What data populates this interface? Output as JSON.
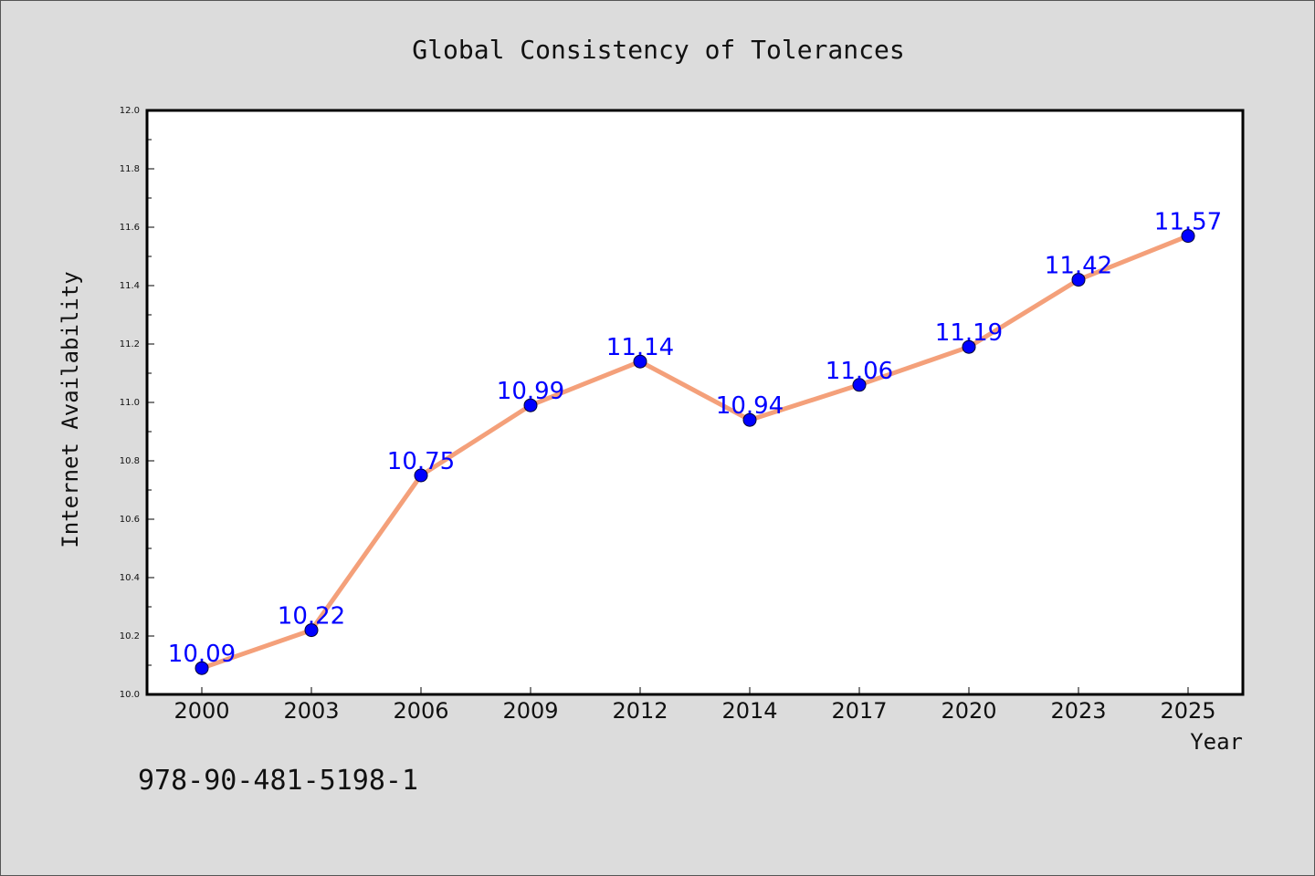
{
  "colors": {
    "background": "#dcdcdc",
    "plot_background": "#ffffff",
    "line": "#f4a07a",
    "marker": "#0000ff",
    "label_text": "#0000ff",
    "text": "#111111"
  },
  "footer_code": "978-90-481-5198-1",
  "chart_data": {
    "type": "line",
    "title": "Global Consistency of Tolerances",
    "xlabel": "Year",
    "ylabel": "Internet Availability",
    "categories": [
      "2000",
      "2003",
      "2006",
      "2009",
      "2012",
      "2014",
      "2017",
      "2020",
      "2023",
      "2025"
    ],
    "series": [
      {
        "values": [
          10.09,
          10.22,
          10.75,
          10.99,
          11.14,
          10.94,
          11.06,
          11.19,
          11.42,
          11.57
        ],
        "data_labels": [
          "10.09",
          "10.22",
          "10.75",
          "10.99",
          "11.14",
          "10.94",
          "11.06",
          "11.19",
          "11.42",
          "11.57"
        ]
      }
    ],
    "ylim": [
      10.0,
      12.0
    ],
    "yticks": [
      "10.0",
      "10.2",
      "10.4",
      "10.6",
      "10.8",
      "11.0",
      "11.2",
      "11.4",
      "11.6",
      "11.8",
      "12.0"
    ],
    "grid": false,
    "legend": false
  }
}
